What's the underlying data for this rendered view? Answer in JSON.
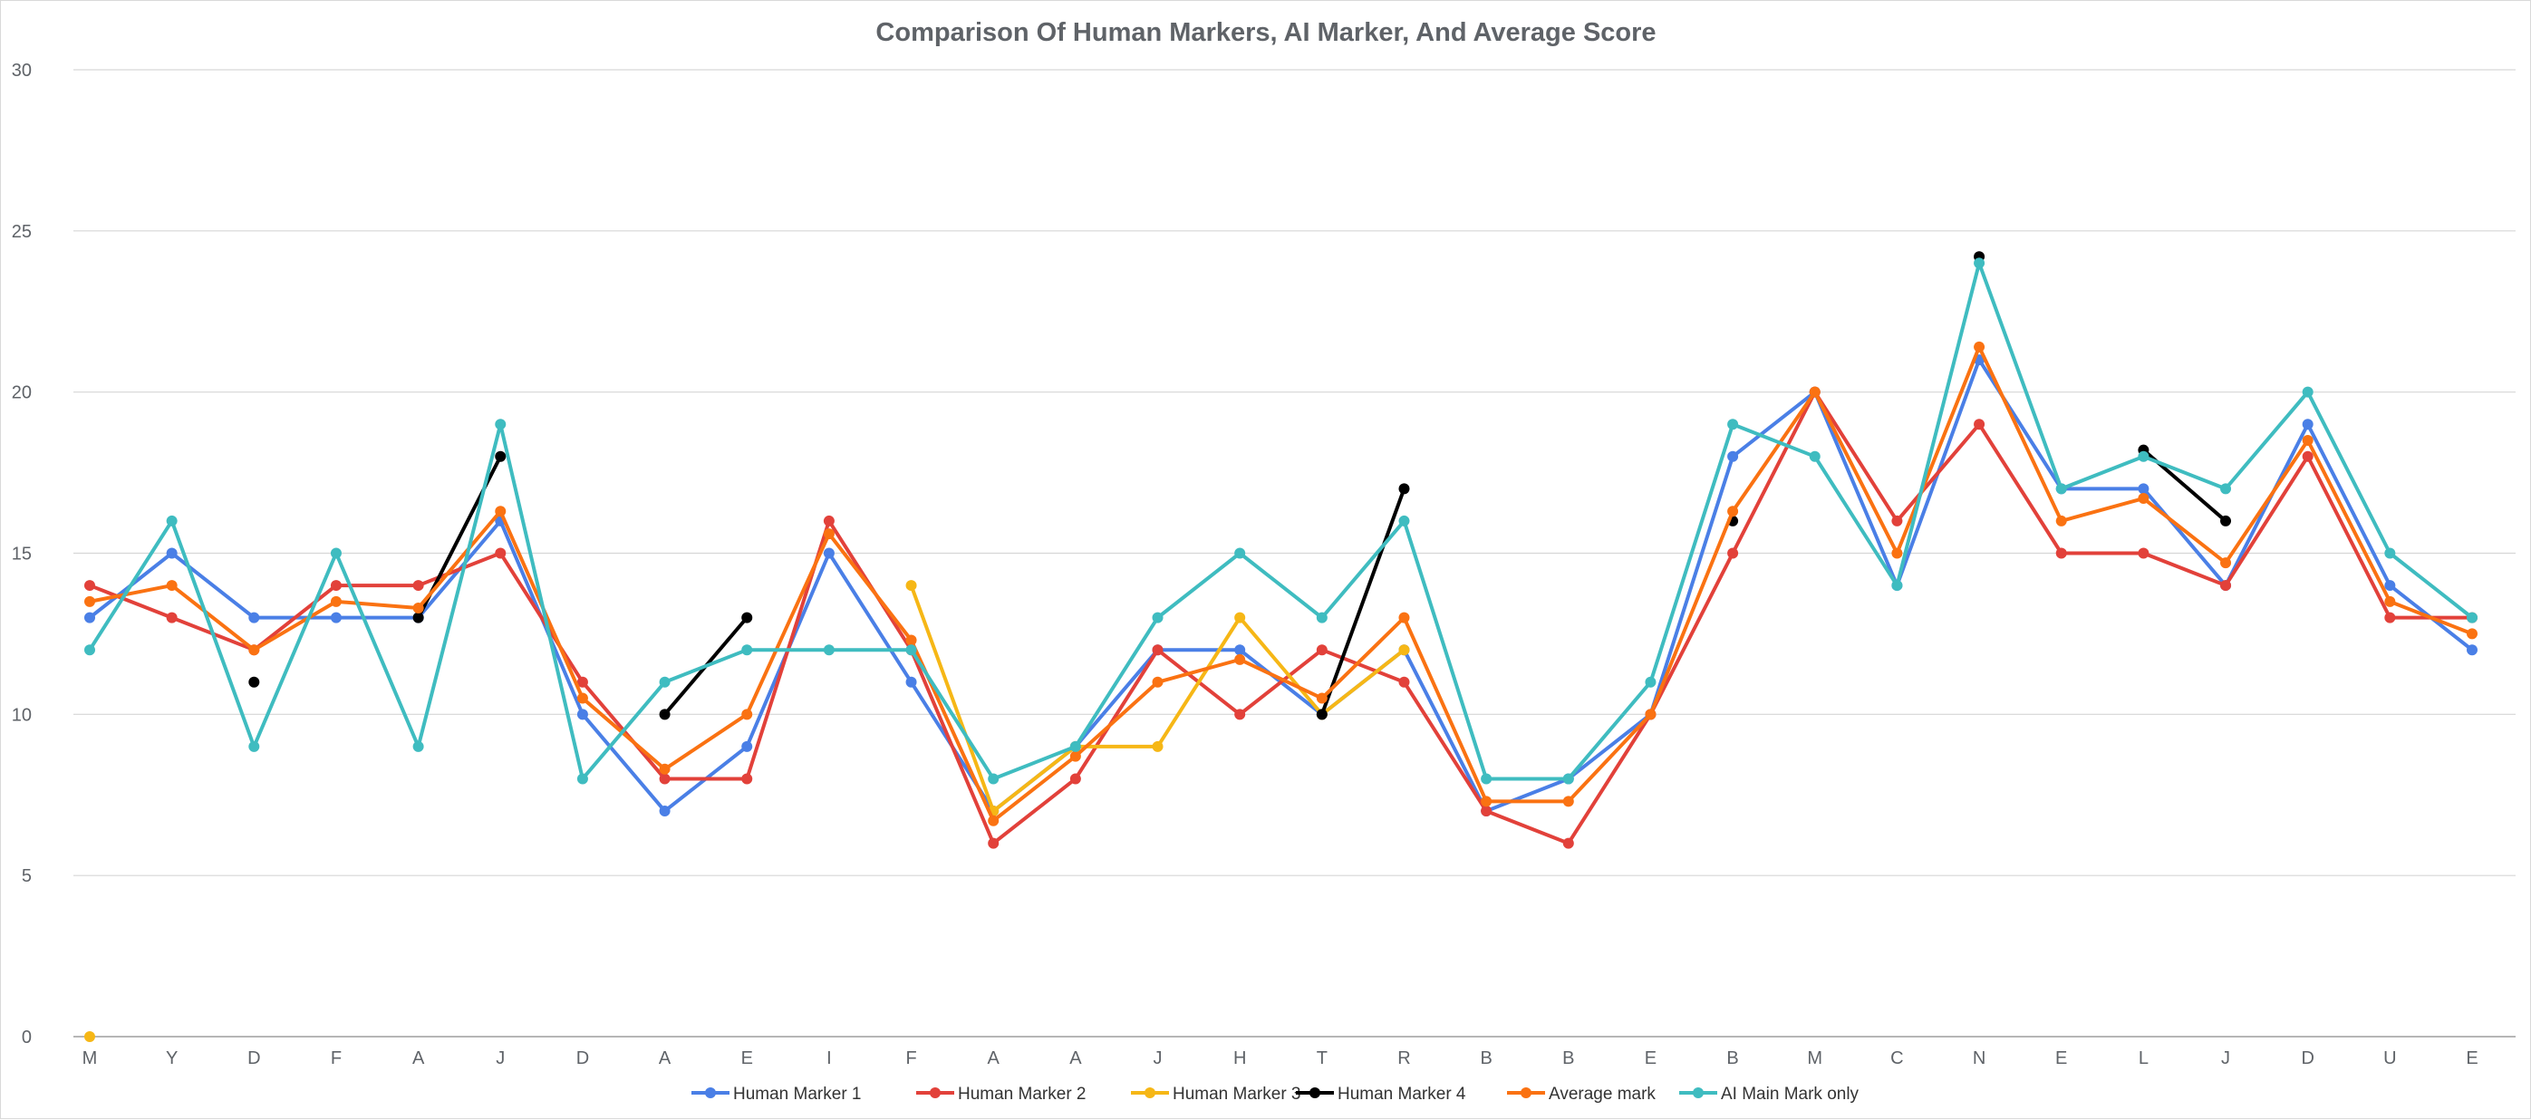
{
  "chart_data": {
    "type": "line",
    "title": "Comparison Of Human Markers, AI Marker, And Average Score",
    "xlabel": "",
    "ylabel": "",
    "ylim": [
      0,
      30
    ],
    "yticks": [
      0,
      5,
      10,
      15,
      20,
      25,
      30
    ],
    "grid": true,
    "legend_position": "bottom",
    "categories": [
      "M",
      "Y",
      "D",
      "F",
      "A",
      "J",
      "D",
      "A",
      "E",
      "I",
      "F",
      "A",
      "A",
      "J",
      "H",
      "T",
      "R",
      "B",
      "B",
      "E",
      "B",
      "M",
      "C",
      "N",
      "E",
      "L",
      "J",
      "D",
      "U",
      "E"
    ],
    "series": [
      {
        "name": "Human Marker 1",
        "color": "#4a7fe6",
        "values": [
          13,
          15,
          13,
          13,
          13,
          16,
          10,
          7,
          9,
          15,
          11,
          7,
          9,
          12,
          12,
          10,
          12,
          7,
          8,
          10,
          18,
          20,
          14,
          21,
          17,
          17,
          14,
          19,
          14,
          12
        ]
      },
      {
        "name": "Human Marker 2",
        "color": "#e2413a",
        "values": [
          14,
          13,
          12,
          14,
          14,
          15,
          11,
          8,
          8,
          16,
          12,
          6,
          8,
          12,
          10,
          12,
          11,
          7,
          6,
          10,
          15,
          20,
          16,
          19,
          15,
          15,
          14,
          18,
          13,
          13
        ]
      },
      {
        "name": "Human Marker 3",
        "color": "#f6b716",
        "values": [
          0,
          null,
          null,
          null,
          null,
          null,
          null,
          null,
          null,
          null,
          14,
          7,
          9,
          9,
          13,
          10,
          12,
          null,
          null,
          null,
          null,
          null,
          null,
          null,
          null,
          null,
          null,
          null,
          null,
          null
        ]
      },
      {
        "name": "Human Marker 4",
        "color": "#000000",
        "values": [
          null,
          null,
          11,
          null,
          13,
          18,
          null,
          10,
          13,
          null,
          null,
          null,
          null,
          null,
          null,
          10,
          17,
          null,
          null,
          null,
          16,
          null,
          null,
          24.2,
          null,
          18.2,
          16,
          null,
          null,
          null
        ]
      },
      {
        "name": "Average mark",
        "color": "#fa7212",
        "values": [
          13.5,
          14,
          12,
          13.5,
          13.3,
          16.3,
          10.5,
          8.3,
          10,
          15.6,
          12.3,
          6.7,
          8.7,
          11,
          11.7,
          10.5,
          13,
          7.3,
          7.3,
          10,
          16.3,
          20,
          15,
          21.4,
          16,
          16.7,
          14.7,
          18.5,
          13.5,
          12.5
        ]
      },
      {
        "name": "AI Main Mark only",
        "color": "#3fbcc0",
        "values": [
          12,
          16,
          9,
          15,
          9,
          19,
          8,
          11,
          12,
          12,
          12,
          8,
          9,
          13,
          15,
          13,
          16,
          8,
          8,
          11,
          19,
          18,
          14,
          24,
          17,
          18,
          17,
          20,
          15,
          13
        ]
      }
    ]
  }
}
